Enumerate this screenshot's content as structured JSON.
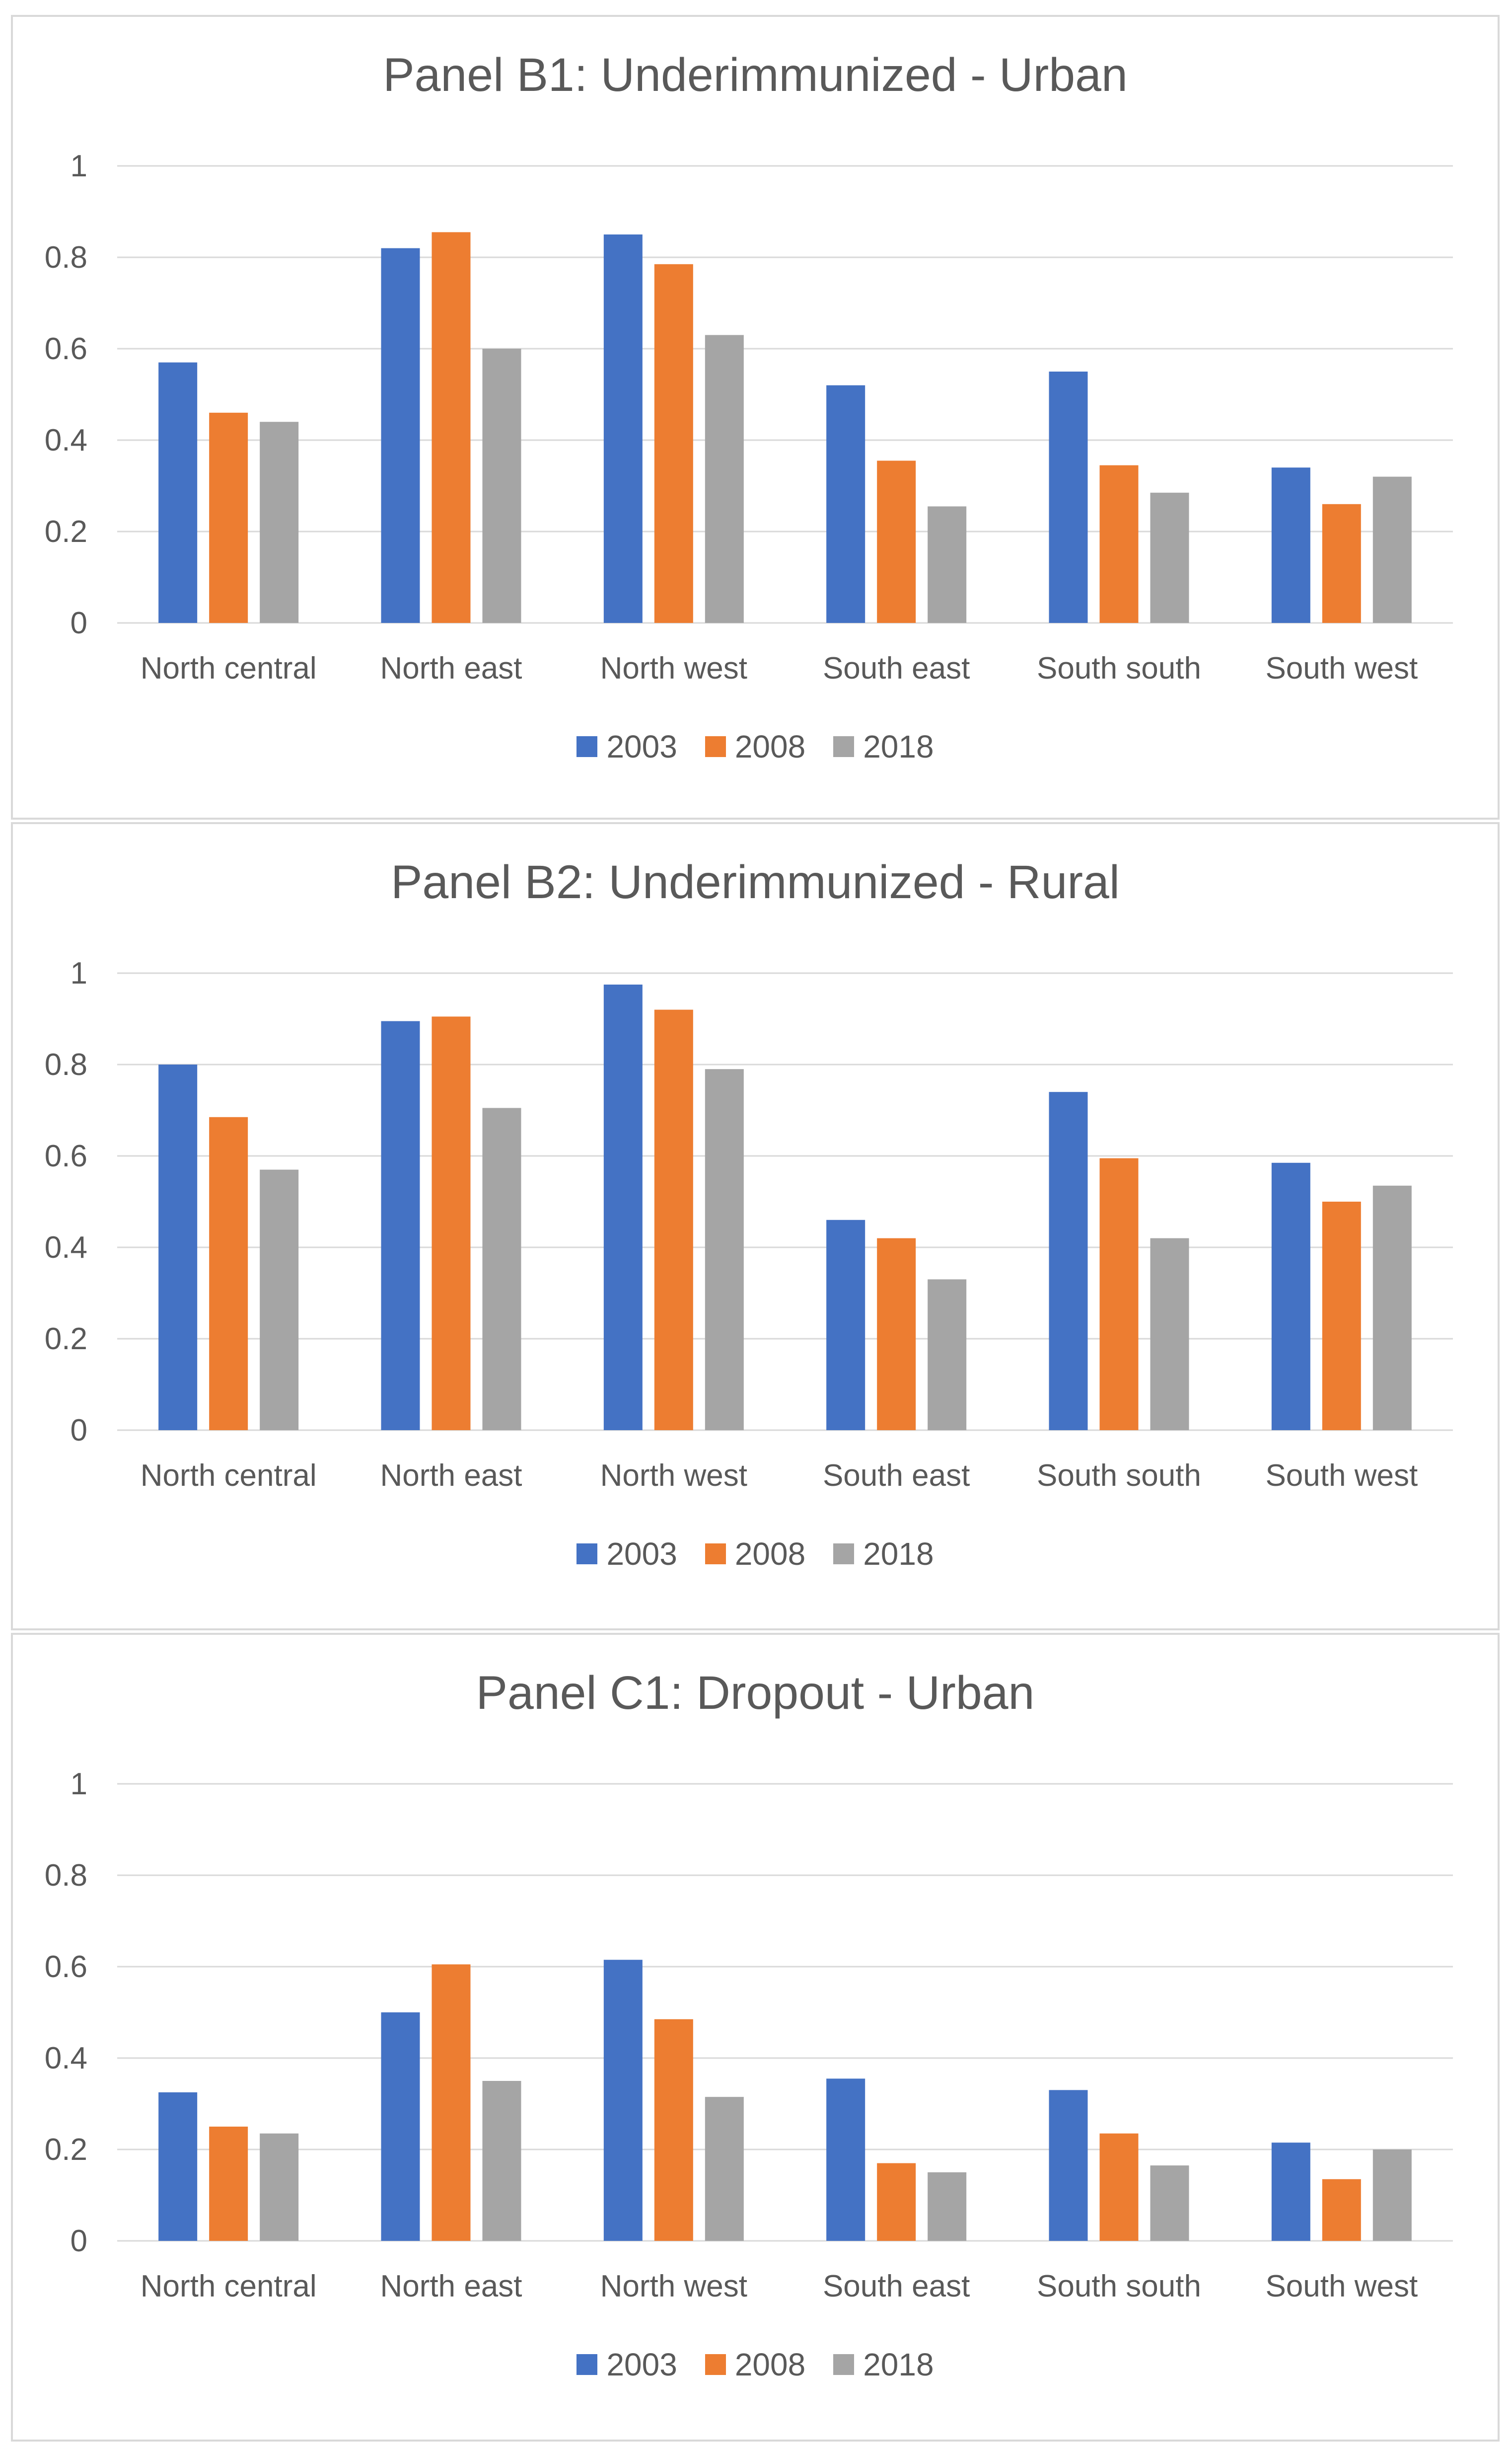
{
  "chart_data": [
    {
      "type": "bar",
      "title": "Panel B1: Underimmunized - Urban",
      "categories": [
        "North central",
        "North east",
        "North west",
        "South east",
        "South south",
        "South west"
      ],
      "series": [
        {
          "name": "2003",
          "color": "#4472c4",
          "values": [
            0.57,
            0.82,
            0.85,
            0.52,
            0.55,
            0.34
          ]
        },
        {
          "name": "2008",
          "color": "#ed7d31",
          "values": [
            0.46,
            0.855,
            0.785,
            0.355,
            0.345,
            0.26
          ]
        },
        {
          "name": "2018",
          "color": "#a5a5a5",
          "values": [
            0.44,
            0.6,
            0.63,
            0.255,
            0.285,
            0.32
          ]
        }
      ],
      "yticks": [
        "0",
        "0.2",
        "0.4",
        "0.6",
        "0.8",
        "1"
      ],
      "ylim": [
        0,
        1
      ],
      "grid": true,
      "legend": "bottom"
    },
    {
      "type": "bar",
      "title": "Panel B2: Underimmunized - Rural",
      "categories": [
        "North central",
        "North east",
        "North west",
        "South east",
        "South south",
        "South west"
      ],
      "series": [
        {
          "name": "2003",
          "color": "#4472c4",
          "values": [
            0.8,
            0.895,
            0.975,
            0.46,
            0.74,
            0.585
          ]
        },
        {
          "name": "2008",
          "color": "#ed7d31",
          "values": [
            0.685,
            0.905,
            0.92,
            0.42,
            0.595,
            0.5
          ]
        },
        {
          "name": "2018",
          "color": "#a5a5a5",
          "values": [
            0.57,
            0.705,
            0.79,
            0.33,
            0.42,
            0.535
          ]
        }
      ],
      "yticks": [
        "0",
        "0.2",
        "0.4",
        "0.6",
        "0.8",
        "1"
      ],
      "ylim": [
        0,
        1
      ],
      "grid": true,
      "legend": "bottom"
    },
    {
      "type": "bar",
      "title": "Panel C1: Dropout - Urban",
      "categories": [
        "North central",
        "North east",
        "North west",
        "South east",
        "South south",
        "South west"
      ],
      "series": [
        {
          "name": "2003",
          "color": "#4472c4",
          "values": [
            0.325,
            0.5,
            0.615,
            0.355,
            0.33,
            0.215
          ]
        },
        {
          "name": "2008",
          "color": "#ed7d31",
          "values": [
            0.25,
            0.605,
            0.485,
            0.17,
            0.235,
            0.135
          ]
        },
        {
          "name": "2018",
          "color": "#a5a5a5",
          "values": [
            0.235,
            0.35,
            0.315,
            0.15,
            0.165,
            0.2
          ]
        }
      ],
      "yticks": [
        "0",
        "0.2",
        "0.4",
        "0.6",
        "0.8",
        "1"
      ],
      "ylim": [
        0,
        1
      ],
      "grid": true,
      "legend": "bottom"
    }
  ]
}
